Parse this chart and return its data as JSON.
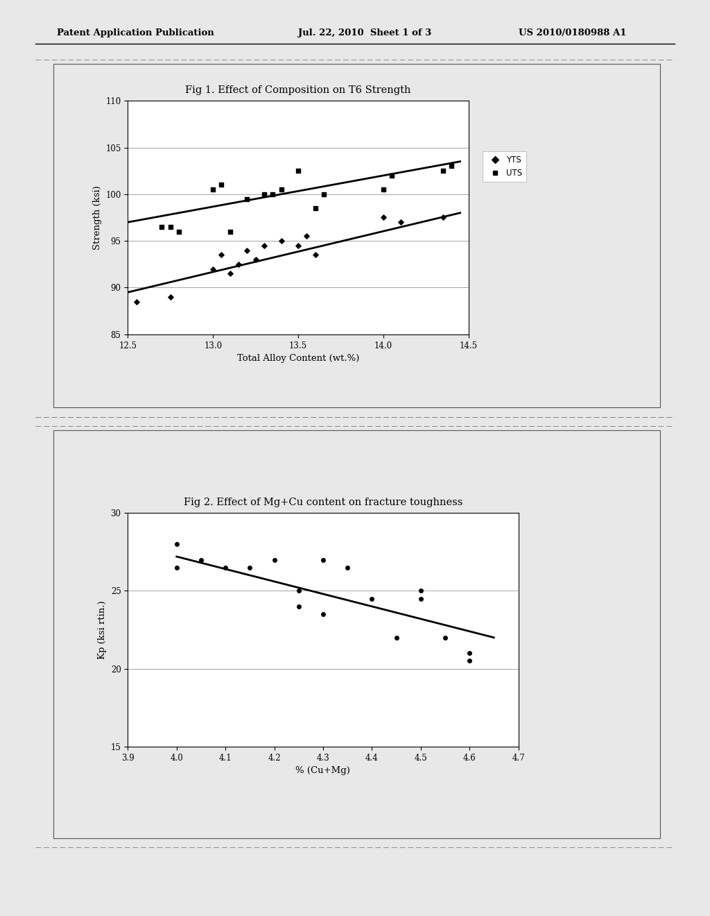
{
  "page_header_left": "Patent Application Publication",
  "page_header_mid": "Jul. 22, 2010  Sheet 1 of 3",
  "page_header_right": "US 2010/0180988 A1",
  "background_color": "#e8e8e8",
  "fig1": {
    "title": "Fig 1. Effect of Composition on T6 Strength",
    "xlabel": "Total Alloy Content (wt.%)",
    "ylabel": "Strength (ksi)",
    "xlim": [
      12.5,
      14.5
    ],
    "ylim": [
      85,
      110
    ],
    "yticks": [
      85,
      90,
      95,
      100,
      105,
      110
    ],
    "xticks": [
      12.5,
      13.0,
      13.5,
      14.0,
      14.5
    ],
    "yts_scatter": [
      [
        12.55,
        88.5
      ],
      [
        12.75,
        89.0
      ],
      [
        13.0,
        92.0
      ],
      [
        13.05,
        93.5
      ],
      [
        13.1,
        91.5
      ],
      [
        13.15,
        92.5
      ],
      [
        13.2,
        94.0
      ],
      [
        13.25,
        93.0
      ],
      [
        13.3,
        94.5
      ],
      [
        13.4,
        95.0
      ],
      [
        13.5,
        94.5
      ],
      [
        13.55,
        95.5
      ],
      [
        13.6,
        93.5
      ],
      [
        14.0,
        97.5
      ],
      [
        14.1,
        97.0
      ],
      [
        14.35,
        97.5
      ]
    ],
    "uts_scatter": [
      [
        12.7,
        96.5
      ],
      [
        12.75,
        96.5
      ],
      [
        12.8,
        96.0
      ],
      [
        13.0,
        100.5
      ],
      [
        13.05,
        101.0
      ],
      [
        13.1,
        96.0
      ],
      [
        13.2,
        99.5
      ],
      [
        13.3,
        100.0
      ],
      [
        13.35,
        100.0
      ],
      [
        13.4,
        100.5
      ],
      [
        13.5,
        102.5
      ],
      [
        13.6,
        98.5
      ],
      [
        13.65,
        100.0
      ],
      [
        14.0,
        100.5
      ],
      [
        14.05,
        102.0
      ],
      [
        14.35,
        102.5
      ],
      [
        14.4,
        103.0
      ]
    ],
    "yts_line": [
      [
        12.5,
        89.5
      ],
      [
        14.45,
        98.0
      ]
    ],
    "uts_line": [
      [
        12.5,
        97.0
      ],
      [
        14.45,
        103.5
      ]
    ],
    "legend_yts": "YTS",
    "legend_uts": "UTS"
  },
  "fig2": {
    "title": "Fig 2. Effect of Mg+Cu content on fracture toughness",
    "xlabel": "% (Cu+Mg)",
    "ylabel": "Kp (ksi rtin.)",
    "xlim": [
      3.9,
      4.7
    ],
    "ylim": [
      15,
      30
    ],
    "yticks": [
      15,
      20,
      25,
      30
    ],
    "xticks": [
      3.9,
      4.0,
      4.1,
      4.2,
      4.3,
      4.4,
      4.5,
      4.6,
      4.7
    ],
    "scatter": [
      [
        4.0,
        28.0
      ],
      [
        4.0,
        26.5
      ],
      [
        4.05,
        27.0
      ],
      [
        4.1,
        26.5
      ],
      [
        4.15,
        26.5
      ],
      [
        4.2,
        27.0
      ],
      [
        4.25,
        25.0
      ],
      [
        4.25,
        24.0
      ],
      [
        4.3,
        27.0
      ],
      [
        4.3,
        23.5
      ],
      [
        4.35,
        26.5
      ],
      [
        4.4,
        24.5
      ],
      [
        4.45,
        22.0
      ],
      [
        4.5,
        25.0
      ],
      [
        4.5,
        24.5
      ],
      [
        4.55,
        22.0
      ],
      [
        4.6,
        20.5
      ],
      [
        4.6,
        21.0
      ]
    ],
    "trend_line": [
      [
        4.0,
        27.2
      ],
      [
        4.65,
        22.0
      ]
    ]
  },
  "separator_color": "#888888",
  "box_border_color": "#555555"
}
